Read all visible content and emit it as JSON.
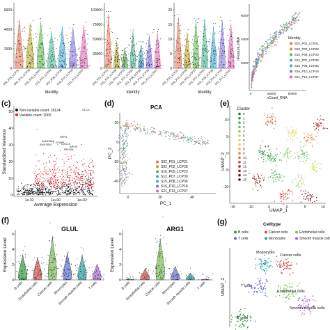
{
  "panels": {
    "a": {
      "yticks": [
        "6000",
        "4000",
        "2000",
        "0"
      ],
      "xlabel": "Identity",
      "samples": [
        "S02_P01_LCP21",
        "S02_P02_LCP28",
        "S10_P05_LCP23",
        "S12_P07_LCP30",
        "S15_P08_LCP36",
        "S16_P10_LCP18",
        "S21_P13_LCP37"
      ]
    },
    "b": {
      "yticks": [
        "100000",
        "75000",
        "50000",
        "25000",
        "0"
      ],
      "xlabel": "Identity",
      "samples": [
        "S02_P01_LCP21",
        "S02_P02_LCP28",
        "S10_P05_LCP23",
        "S12_P07_LCP30",
        "S15_P08_LCP36",
        "S16_P10_LCP18",
        "S21_P13_LCP37"
      ]
    },
    "a3": {
      "yticks": [
        "20",
        "15",
        "10",
        "5",
        "0"
      ],
      "xlabel": "Identity",
      "samples": [
        "S02_P01_LCP21",
        "S02_P02_LCP28",
        "S10_P05_LCP23",
        "S12_P07_LCP30",
        "S15_P08_LCP36",
        "S16_P10_LCP18",
        "S21_P13_LCP37"
      ]
    },
    "a4": {
      "ylabel": "nFeature_RNA",
      "yticks": [
        "6000",
        "4000",
        "2000"
      ],
      "xticks": [
        "0",
        "25000",
        "50000"
      ],
      "xlabel": "nCount_RNA",
      "legend_title": "Identity",
      "legend": [
        "S02_P01_LCP21",
        "S02_P02_LCP28",
        "S10_P05_LCP23",
        "S12_P07_LCP30",
        "S15_P08_LCP36",
        "S16_P10_LCP18",
        "S21_P13_LCP37"
      ]
    },
    "c": {
      "label": "(c)",
      "legend": [
        "Non-variable count: 18124",
        "Variable count: 2000"
      ],
      "ylabel": "Standardized Variance",
      "xlabel": "Average Expression",
      "yticks": [
        "50",
        "40",
        "30",
        "20",
        "10",
        "0"
      ],
      "xticks": [
        "1e-02",
        "1e+00",
        "1e+02"
      ],
      "genes": [
        "GLC3",
        "SPP1",
        "ALDH3A1",
        "AKR1B10",
        "S100P",
        "CXCL5",
        "APOE",
        "REG3A"
      ]
    },
    "d": {
      "label": "(d)",
      "title": "PCA",
      "ylabel": "PC_2",
      "xlabel": "PC_1",
      "yticks": [
        "20",
        "0",
        "-20",
        "-40"
      ],
      "xticks": [
        "0",
        "20",
        "40"
      ],
      "legend": [
        "S02_P01_LCP21",
        "S02_P02_LCP28",
        "S10_P05_LCP23",
        "S12_P07_LCP30",
        "S15_P08_LCP36",
        "S16_P10_LCP18",
        "S21_P13_LCP37"
      ]
    },
    "e": {
      "label": "(e)",
      "legend_title": "Cluster",
      "clusters": [
        "0",
        "1",
        "2",
        "3",
        "4",
        "5",
        "6",
        "7",
        "8",
        "9",
        "10",
        "11",
        "12",
        "13",
        "14",
        "15"
      ],
      "ylabel": "UMAP_2",
      "xlabel": "UMAP_1",
      "yticks": [
        "10",
        "5",
        "0",
        "-5",
        "-10"
      ],
      "xticks": [
        "-15",
        "-10",
        "-5",
        "0",
        "5",
        "10"
      ]
    },
    "f": {
      "label": "(f)",
      "glul_title": "GLUL",
      "arg1_title": "ARG1",
      "ylabel": "Expression Level",
      "glul_yticks": [
        "6",
        "4",
        "2",
        "0"
      ],
      "arg1_yticks": [
        "6",
        "4",
        "2",
        "0"
      ],
      "celltypes": [
        "B cells",
        "Endothelial cells",
        "Cancer cells",
        "Monocytes",
        "Smooth muscle cells",
        "T cells"
      ]
    },
    "g": {
      "label": "(g)",
      "legend_title": "Celltype",
      "legend": [
        "B cells",
        "Cancer cells",
        "Endothelial cells",
        "T cells",
        "Monocytes",
        "Smooth muscle cells"
      ],
      "ylabel": "UMAP_2",
      "cluster_labels": [
        "Monocytes",
        "Cancer cells",
        "T cells",
        "Endothelial cells",
        "Smooth muscle cells",
        "B cells"
      ]
    }
  },
  "colors": {
    "samples": [
      "#e8704f",
      "#b5a21c",
      "#52b848",
      "#3fb58f",
      "#3ba7d7",
      "#7b6fe0",
      "#e25fb5"
    ],
    "clusters": [
      "#1a7a2a",
      "#2f9a3a",
      "#4caf50",
      "#6cbf5c",
      "#8fcf6a",
      "#b0d86e",
      "#d2dd5e",
      "#e6d24a",
      "#e9b33c",
      "#e48a30",
      "#da6426",
      "#cc3f1f",
      "#b3261c",
      "#8f1a18",
      "#6b1214",
      "#4a0c0e"
    ],
    "celltypes": [
      "#2e9e3f",
      "#d24b4b",
      "#7bbf57",
      "#5f6fd6",
      "#2aa1a1",
      "#a566d0"
    ],
    "variable": "#e51f1f",
    "nonvariable": "#111111"
  }
}
